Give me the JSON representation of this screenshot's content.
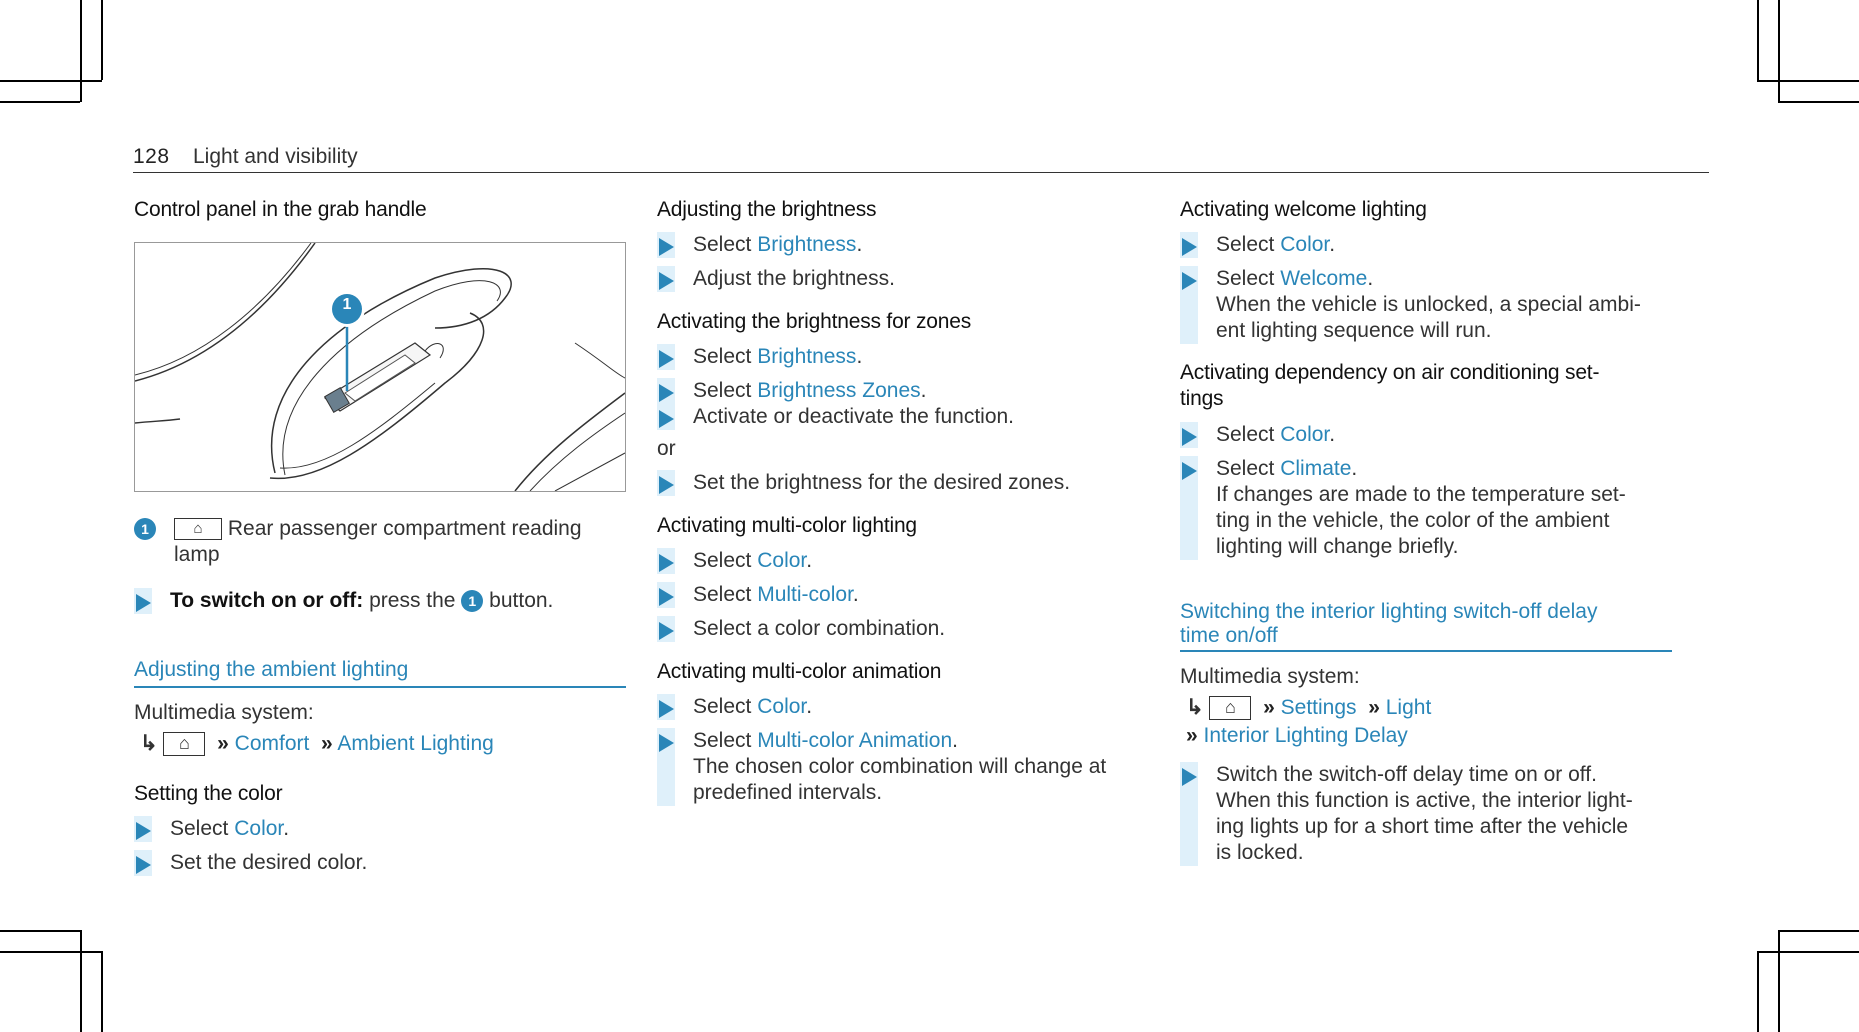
{
  "header": {
    "page_number": "128",
    "section": "Light and visibility"
  },
  "col1": {
    "title": "Control panel in the grab handle",
    "figure_badge": "1",
    "legend_badge": "1",
    "legend_text": "Rear passenger compartment reading lamp",
    "step_bold": "To switch on or off:",
    "step_rest_a": "press the",
    "step_badge": "1",
    "step_rest_b": "button.",
    "ambient_heading": "Adjusting the ambient lighting",
    "multimedia": "Multimedia system:",
    "nav_comfort": "Comfort",
    "nav_ambient": "Ambient Lighting",
    "setting_color": "Setting the color",
    "s1_pre": "Select",
    "s1_link": "Color",
    "s1_post": ".",
    "s2": "Set the desired color."
  },
  "col2": {
    "h_brightness": "Adjusting the brightness",
    "b1_pre": "Select",
    "b1_link": "Brightness",
    "b1_post": ".",
    "b2": "Adjust the brightness.",
    "h_zones": "Activating the brightness for zones",
    "z1_pre": "Select",
    "z1_link": "Brightness",
    "z1_post": ".",
    "z2_pre": "Select",
    "z2_link": "Brightness Zones",
    "z2_post": ".",
    "z3": "Activate or deactivate the function.",
    "or": "or",
    "z4": "Set the brightness for the desired zones.",
    "h_multicolor": "Activating multi-color lighting",
    "m1_pre": "Select",
    "m1_link": "Color",
    "m1_post": ".",
    "m2_pre": "Select",
    "m2_link": "Multi-color",
    "m2_post": ".",
    "m3": "Select a color combination.",
    "h_animation": "Activating multi-color animation",
    "a1_pre": "Select",
    "a1_link": "Color",
    "a1_post": ".",
    "a2_pre": "Select",
    "a2_link": "Multi-color Animation",
    "a2_post": ".",
    "a2_desc1": "The chosen color combination will change at",
    "a2_desc2": "predefined intervals."
  },
  "col3": {
    "h_welcome": "Activating welcome lighting",
    "w1_pre": "Select",
    "w1_link": "Color",
    "w1_post": ".",
    "w2_pre": "Select",
    "w2_link": "Welcome",
    "w2_post": ".",
    "w2_desc1": "When the vehicle is unlocked, a special ambi-",
    "w2_desc2": "ent lighting sequence will run.",
    "h_dependency1": "Activating dependency on air conditioning set-",
    "h_dependency2": "tings",
    "d1_pre": "Select",
    "d1_link": "Color",
    "d1_post": ".",
    "d2_pre": "Select",
    "d2_link": "Climate",
    "d2_post": ".",
    "d2_desc1": "If changes are made to the temperature set-",
    "d2_desc2": "ting in the vehicle, the color of the ambient",
    "d2_desc3": "lighting will change briefly.",
    "h_switchoff1": "Switching the interior lighting switch-off delay",
    "h_switchoff2": "time on/off",
    "multimedia": "Multimedia system:",
    "nav_settings": "Settings",
    "nav_light": "Light",
    "nav_delay": "Interior Lighting Delay",
    "s1": "Switch the switch-off delay time on or off.",
    "s1_desc1": "When this function is active, the interior light-",
    "s1_desc2": "ing lights up for a short time after the vehicle",
    "s1_desc3": "is locked."
  }
}
